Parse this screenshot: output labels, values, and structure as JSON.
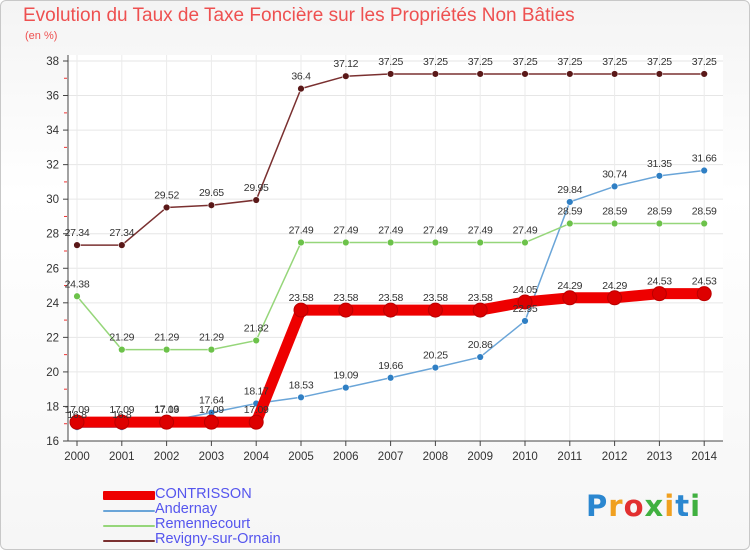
{
  "chart_data": {
    "type": "line",
    "title": "Evolution du Taux de Taxe Foncière sur les Propriétés Non Bâties",
    "ylabel": "(en %)",
    "xlabel": "",
    "ylim": [
      16,
      38
    ],
    "yticks": [
      "16",
      "18",
      "20",
      "22",
      "24",
      "26",
      "28",
      "30",
      "32",
      "34",
      "36",
      "38"
    ],
    "grid": true,
    "categories": [
      "2000",
      "2001",
      "2002",
      "2003",
      "2004",
      "2005",
      "2006",
      "2007",
      "2008",
      "2009",
      "2010",
      "2011",
      "2012",
      "2013",
      "2014"
    ],
    "series": [
      {
        "name": "CONTRISSON",
        "color": "#ee0000",
        "marker": "#dd0000",
        "emphasis": true,
        "values": [
          17.09,
          17.09,
          17.09,
          17.09,
          17.09,
          23.58,
          23.58,
          23.58,
          23.58,
          23.58,
          24.05,
          24.29,
          24.29,
          24.53,
          24.53
        ],
        "labels": [
          "17.09",
          "17.09",
          "17.09",
          "17.09",
          "17.09",
          "23.58",
          "23.58",
          "23.58",
          "23.58",
          "23.58",
          "24.05",
          "24.29",
          "24.29",
          "24.53",
          "24.53"
        ]
      },
      {
        "name": "Andernay",
        "color": "#6aa5d8",
        "marker": "#2f7fc4",
        "emphasis": false,
        "values": [
          16.8,
          16.8,
          17.13,
          17.64,
          18.17,
          18.53,
          19.09,
          19.66,
          20.25,
          20.86,
          22.95,
          29.84,
          30.74,
          31.35,
          31.66
        ],
        "labels": [
          "16.8",
          "16.8",
          "17.13",
          "17.64",
          "18.17",
          "18.53",
          "19.09",
          "19.66",
          "20.25",
          "20.86",
          "22.95",
          "29.84",
          "30.74",
          "31.35",
          "31.66"
        ]
      },
      {
        "name": "Remennecourt",
        "color": "#96d67a",
        "marker": "#6cc24a",
        "emphasis": false,
        "values": [
          24.38,
          21.29,
          21.29,
          21.29,
          21.82,
          27.49,
          27.49,
          27.49,
          27.49,
          27.49,
          27.49,
          28.59,
          28.59,
          28.59,
          28.59
        ],
        "labels": [
          "24.38",
          "21.29",
          "21.29",
          "21.29",
          "21.82",
          "27.49",
          "27.49",
          "27.49",
          "27.49",
          "27.49",
          "27.49",
          "28.59",
          "28.59",
          "28.59",
          "28.59"
        ]
      },
      {
        "name": "Revigny-sur-Ornain",
        "color": "#7a3030",
        "marker": "#5a1818",
        "emphasis": false,
        "values": [
          27.34,
          27.34,
          29.52,
          29.65,
          29.95,
          36.4,
          37.12,
          37.25,
          37.25,
          37.25,
          37.25,
          37.25,
          37.25,
          37.25,
          37.25
        ],
        "labels": [
          "27.34",
          "27.34",
          "29.52",
          "29.65",
          "29.95",
          "36.4",
          "37.12",
          "37.25",
          "37.25",
          "37.25",
          "37.25",
          "37.25",
          "37.25",
          "37.25",
          "37.25"
        ]
      }
    ]
  },
  "legend": {
    "items": [
      {
        "label": "CONTRISSON",
        "color": "#ee0000"
      },
      {
        "label": "Andernay",
        "color": "#6aa5d8"
      },
      {
        "label": "Remennecourt",
        "color": "#96d67a"
      },
      {
        "label": "Revigny-sur-Ornain",
        "color": "#7a3030"
      }
    ],
    "text_color": "#5555ee"
  },
  "logo": {
    "text": "Proxiti",
    "colors": [
      "#2b87d0",
      "#f0a020",
      "#e23030",
      "#40b040",
      "#f0a020",
      "#2b87d0",
      "#40b040"
    ]
  }
}
